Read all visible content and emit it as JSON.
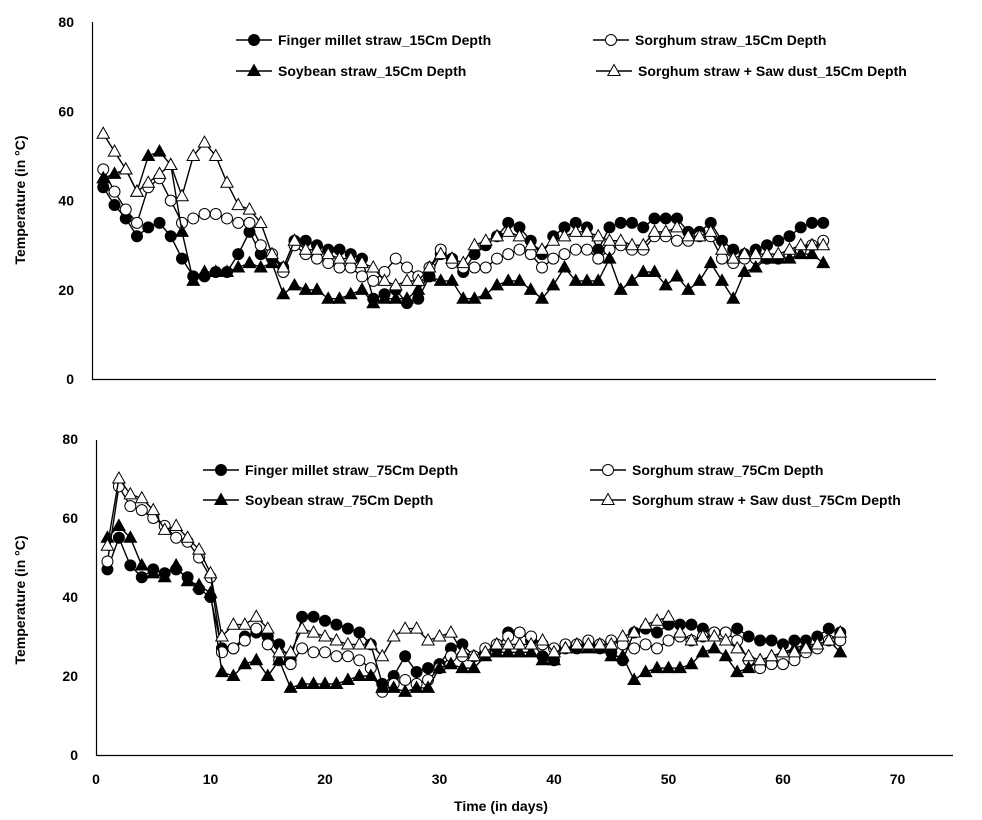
{
  "figure": {
    "xlabel": "Time (in days)"
  },
  "chart_data": [
    {
      "type": "line",
      "ylabel": "Temperature (in °C)",
      "xlim": [
        0,
        75
      ],
      "ylim": [
        0,
        80
      ],
      "x_ticks": [],
      "y_ticks": [
        0,
        20,
        40,
        60,
        80
      ],
      "grid": false,
      "legend_position": "top",
      "x": [
        1,
        2,
        3,
        4,
        5,
        6,
        7,
        8,
        9,
        10,
        11,
        12,
        13,
        14,
        15,
        16,
        17,
        18,
        19,
        20,
        21,
        22,
        23,
        24,
        25,
        26,
        27,
        28,
        29,
        30,
        31,
        32,
        33,
        34,
        35,
        36,
        37,
        38,
        39,
        40,
        41,
        42,
        43,
        44,
        45,
        46,
        47,
        48,
        49,
        50,
        51,
        52,
        53,
        54,
        55,
        56,
        57,
        58,
        59,
        60,
        61,
        62,
        63,
        64,
        65
      ],
      "series": [
        {
          "name": "Finger millet straw_15Cm Depth",
          "marker": "filled-circle",
          "values": [
            43,
            39,
            36,
            32,
            34,
            35,
            32,
            27,
            23,
            23,
            24,
            24,
            28,
            33,
            28,
            27,
            25,
            31,
            31,
            30,
            29,
            29,
            28,
            27,
            18,
            19,
            20,
            17,
            18,
            23,
            28,
            27,
            24,
            28,
            30,
            32,
            35,
            34,
            31,
            28,
            32,
            34,
            35,
            34,
            29,
            34,
            35,
            35,
            34,
            36,
            36,
            36,
            33,
            33,
            35,
            31,
            29,
            28,
            29,
            30,
            31,
            32,
            34,
            35,
            35
          ]
        },
        {
          "name": "Sorghum straw_15Cm Depth",
          "marker": "open-circle",
          "values": [
            47,
            42,
            38,
            35,
            43,
            45,
            40,
            35,
            36,
            37,
            37,
            36,
            35,
            35,
            30,
            28,
            24,
            30,
            28,
            27,
            26,
            25,
            25,
            23,
            22,
            24,
            27,
            25,
            23,
            25,
            29,
            26,
            25,
            25,
            25,
            27,
            28,
            29,
            28,
            25,
            27,
            28,
            29,
            29,
            27,
            29,
            30,
            29,
            29,
            32,
            32,
            31,
            31,
            32,
            32,
            27,
            26,
            27,
            27,
            27,
            27,
            28,
            29,
            30,
            31
          ]
        },
        {
          "name": "Soybean straw_15Cm Depth",
          "marker": "filled-triangle",
          "values": [
            45,
            46,
            47,
            42,
            50,
            51,
            48,
            33,
            22,
            24,
            24,
            24,
            25,
            26,
            25,
            26,
            19,
            21,
            20,
            20,
            18,
            18,
            19,
            20,
            17,
            18,
            18,
            18,
            20,
            23,
            22,
            22,
            18,
            18,
            19,
            21,
            22,
            22,
            20,
            18,
            21,
            25,
            22,
            22,
            22,
            27,
            20,
            22,
            24,
            24,
            21,
            23,
            20,
            22,
            26,
            22,
            18,
            24,
            25,
            27,
            27,
            27,
            28,
            28,
            26
          ]
        },
        {
          "name": "Sorghum straw + Saw dust_15Cm Depth",
          "marker": "open-triangle",
          "values": [
            55,
            51,
            47,
            42,
            44,
            46,
            48,
            41,
            50,
            53,
            50,
            44,
            39,
            38,
            35,
            28,
            25,
            31,
            29,
            29,
            28,
            27,
            27,
            26,
            25,
            22,
            21,
            22,
            22,
            25,
            28,
            27,
            26,
            30,
            31,
            32,
            33,
            32,
            30,
            29,
            31,
            32,
            33,
            33,
            32,
            31,
            31,
            30,
            30,
            33,
            33,
            34,
            32,
            32,
            33,
            29,
            27,
            28,
            28,
            28,
            28,
            29,
            30,
            30,
            30
          ]
        }
      ]
    },
    {
      "type": "line",
      "ylabel": "Temperature (in °C)",
      "xlabel": "Time (in days)",
      "xlim": [
        0,
        75
      ],
      "ylim": [
        0,
        80
      ],
      "x_ticks": [
        0,
        10,
        20,
        30,
        40,
        50,
        60,
        70
      ],
      "y_ticks": [
        0,
        20,
        40,
        60,
        80
      ],
      "grid": false,
      "legend_position": "top",
      "x": [
        1,
        2,
        3,
        4,
        5,
        6,
        7,
        8,
        9,
        10,
        11,
        12,
        13,
        14,
        15,
        16,
        17,
        18,
        19,
        20,
        21,
        22,
        23,
        24,
        25,
        26,
        27,
        28,
        29,
        30,
        31,
        32,
        33,
        34,
        35,
        36,
        37,
        38,
        39,
        40,
        41,
        42,
        43,
        44,
        45,
        46,
        47,
        48,
        49,
        50,
        51,
        52,
        53,
        54,
        55,
        56,
        57,
        58,
        59,
        60,
        61,
        62,
        63,
        64,
        65
      ],
      "series": [
        {
          "name": "Finger millet straw_75Cm Depth",
          "marker": "filled-circle",
          "values": [
            47,
            55,
            48,
            45,
            47,
            46,
            47,
            45,
            42,
            40,
            27,
            27,
            30,
            31,
            30,
            28,
            24,
            35,
            35,
            34,
            33,
            32,
            31,
            28,
            18,
            20,
            25,
            21,
            22,
            23,
            27,
            28,
            25,
            26,
            27,
            31,
            31,
            29,
            25,
            24,
            27,
            27,
            28,
            27,
            26,
            24,
            31,
            32,
            31,
            33,
            33,
            33,
            32,
            31,
            31,
            32,
            30,
            29,
            29,
            28,
            29,
            29,
            30,
            32,
            31
          ]
        },
        {
          "name": "Sorghum straw_75Cm Depth",
          "marker": "open-circle",
          "values": [
            49,
            68,
            63,
            62,
            60,
            58,
            55,
            54,
            50,
            45,
            26,
            27,
            29,
            32,
            28,
            24,
            23,
            27,
            26,
            26,
            25,
            25,
            24,
            22,
            16,
            18,
            19,
            18,
            19,
            22,
            25,
            25,
            25,
            27,
            28,
            30,
            31,
            30,
            28,
            27,
            28,
            28,
            29,
            28,
            29,
            28,
            27,
            28,
            27,
            29,
            30,
            29,
            30,
            31,
            31,
            29,
            24,
            22,
            23,
            23,
            24,
            26,
            27,
            29,
            29
          ]
        },
        {
          "name": "Soybean straw_75Cm Depth",
          "marker": "filled-triangle",
          "values": [
            55,
            58,
            55,
            48,
            46,
            45,
            48,
            44,
            43,
            41,
            21,
            20,
            23,
            24,
            20,
            24,
            17,
            18,
            18,
            18,
            18,
            19,
            20,
            20,
            17,
            17,
            16,
            17,
            17,
            22,
            23,
            22,
            22,
            25,
            26,
            26,
            26,
            26,
            24,
            24,
            27,
            27,
            27,
            27,
            25,
            25,
            19,
            21,
            22,
            22,
            22,
            23,
            26,
            27,
            25,
            21,
            22,
            24,
            25,
            26,
            27,
            28,
            28,
            29,
            26
          ]
        },
        {
          "name": "Sorghum straw + Saw dust_75Cm Depth",
          "marker": "open-triangle",
          "values": [
            53,
            70,
            66,
            65,
            62,
            57,
            58,
            55,
            52,
            46,
            30,
            33,
            33,
            35,
            32,
            26,
            26,
            32,
            31,
            30,
            29,
            28,
            28,
            28,
            25,
            30,
            32,
            32,
            29,
            30,
            31,
            26,
            25,
            26,
            28,
            28,
            28,
            28,
            29,
            26,
            27,
            28,
            28,
            28,
            28,
            30,
            31,
            33,
            34,
            35,
            31,
            29,
            30,
            30,
            29,
            27,
            25,
            24,
            25,
            26,
            26,
            27,
            28,
            29,
            31
          ]
        }
      ]
    }
  ]
}
